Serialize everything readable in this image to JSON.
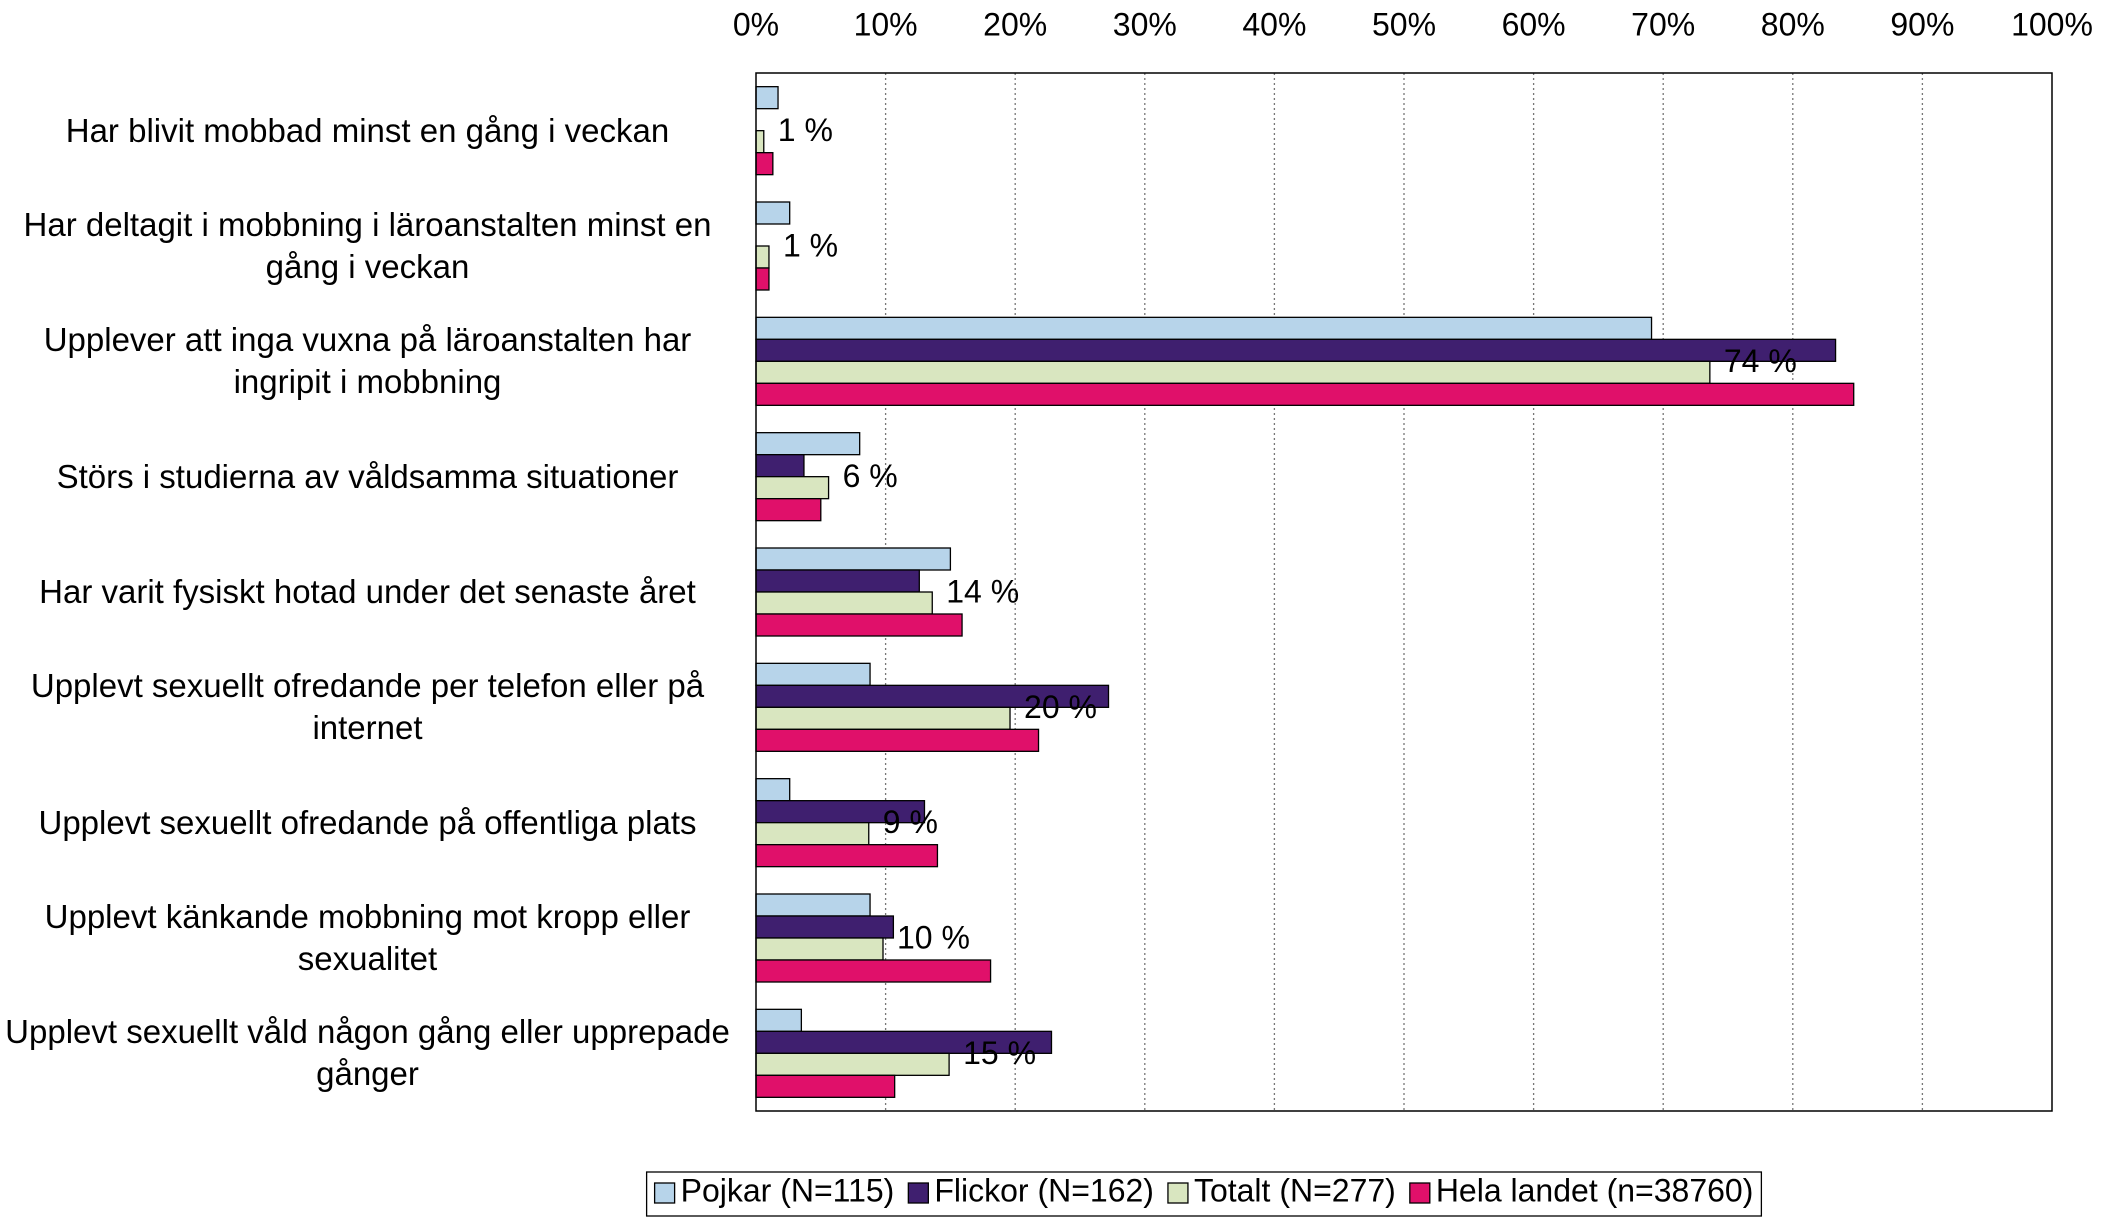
{
  "chart_data": {
    "type": "bar",
    "orientation": "horizontal",
    "categories": [
      "Har blivit mobbad minst en gång i veckan",
      "Har deltagit i mobbning i läroanstalten minst en gång i veckan",
      "Upplever att inga vuxna på läroanstalten har ingripit i mobbning",
      "Störs i studierna av våldsamma situationer",
      "Har varit fysiskt hotad under det senaste året",
      "Upplevt sexuellt ofredande per telefon eller på internet",
      "Upplevt sexuellt ofredande på offentliga plats",
      "Upplevt känkande mobbning mot kropp eller sexualitet",
      "Upplevt sexuellt våld någon gång eller upprepade gånger"
    ],
    "series": [
      {
        "name": "Pojkar (N=115)",
        "color": "#b7d4ea",
        "values": [
          1.7,
          2.6,
          69.1,
          8.0,
          15.0,
          8.8,
          2.6,
          8.8,
          3.5
        ]
      },
      {
        "name": "Flickor (N=162)",
        "color": "#3f1f6f",
        "values": [
          null,
          null,
          83.3,
          3.7,
          12.6,
          27.2,
          13.0,
          10.6,
          22.8
        ]
      },
      {
        "name": "Totalt (N=277)",
        "color": "#d9e6c0",
        "values": [
          0.6,
          1.0,
          73.6,
          5.6,
          13.6,
          19.6,
          8.7,
          9.8,
          14.9
        ],
        "value_labels": [
          "1 %",
          "1 %",
          "74 %",
          "6 %",
          "14 %",
          "20 %",
          "9 %",
          "10 %",
          "15 %"
        ]
      },
      {
        "name": "Hela landet (n=38760)",
        "color": "#e0106a",
        "values": [
          1.3,
          1.0,
          84.7,
          5.0,
          15.9,
          21.8,
          14.0,
          18.1,
          10.7
        ]
      }
    ],
    "xlim": [
      0,
      100
    ],
    "xticks": [
      {
        "value": 0,
        "label": "0%"
      },
      {
        "value": 10,
        "label": "10%"
      },
      {
        "value": 20,
        "label": "20%"
      },
      {
        "value": 30,
        "label": "30%"
      },
      {
        "value": 40,
        "label": "40%"
      },
      {
        "value": 50,
        "label": "50%"
      },
      {
        "value": 60,
        "label": "60%"
      },
      {
        "value": 70,
        "label": "70%"
      },
      {
        "value": 80,
        "label": "80%"
      },
      {
        "value": 90,
        "label": "90%"
      },
      {
        "value": 100,
        "label": "100%"
      }
    ],
    "grid": true,
    "legend": "bottom"
  }
}
